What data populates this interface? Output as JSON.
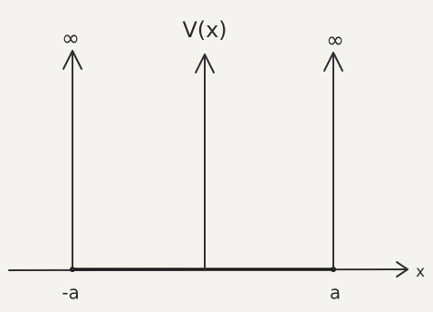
{
  "labels": {
    "left_top": "∞",
    "center_top": "V(x)",
    "right_top": "∞",
    "x_axis": "x",
    "left_bottom": "-a",
    "right_bottom": "a"
  }
}
